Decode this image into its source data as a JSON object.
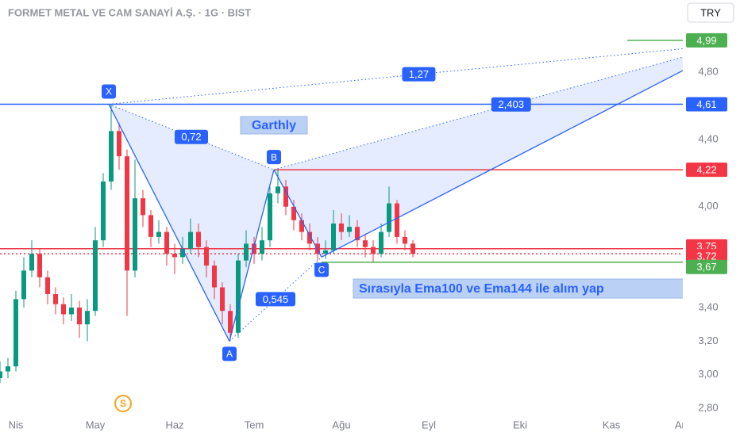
{
  "chart_data": {
    "type": "candlestick",
    "title": "FORMET METAL VE CAM SANAYİ A.Ş. · 1G · BIST",
    "currency": "TRY",
    "xlim": [
      -4,
      168
    ],
    "xticks": [
      {
        "value": 0,
        "label": "Nis"
      },
      {
        "value": 20,
        "label": "May"
      },
      {
        "value": 40,
        "label": "Haz"
      },
      {
        "value": 60,
        "label": "Tem"
      },
      {
        "value": 82,
        "label": "Ağu"
      },
      {
        "value": 104,
        "label": "Eyl"
      },
      {
        "value": 127,
        "label": "Eki"
      },
      {
        "value": 150,
        "label": "Kas"
      },
      {
        "value": 168,
        "label": "Ara"
      }
    ],
    "ylim": [
      2.73,
      5.23
    ],
    "yticks": [
      {
        "value": 4.8,
        "label": "4,80"
      },
      {
        "value": 4.4,
        "label": "4,40"
      },
      {
        "value": 4.0,
        "label": "4,00"
      },
      {
        "value": 3.4,
        "label": "3,40"
      },
      {
        "value": 3.2,
        "label": "3,20"
      },
      {
        "value": 3.0,
        "label": "3,00"
      },
      {
        "value": 2.8,
        "label": "2,80"
      }
    ],
    "up_color": "#089981",
    "down_color": "#f23645",
    "x": [
      -4,
      -2,
      0,
      2,
      4,
      6,
      8,
      10,
      12,
      14,
      16,
      18,
      20,
      22,
      24,
      26,
      28,
      30,
      32,
      34,
      36,
      38,
      40,
      42,
      44,
      46,
      48,
      50,
      52,
      54,
      56,
      58,
      60,
      62,
      64,
      66,
      68,
      70,
      72,
      74,
      76,
      78,
      80,
      82,
      84,
      86,
      88,
      90,
      92,
      94,
      96,
      98,
      100
    ],
    "open": [
      2.98,
      3.02,
      3.05,
      3.45,
      3.62,
      3.72,
      3.58,
      3.48,
      3.42,
      3.36,
      3.4,
      3.3,
      3.38,
      3.8,
      4.15,
      4.45,
      4.3,
      3.62,
      4.05,
      3.95,
      3.82,
      3.85,
      3.72,
      3.7,
      3.75,
      3.85,
      3.76,
      3.65,
      3.52,
      3.38,
      3.25,
      3.68,
      3.78,
      3.72,
      3.8,
      4.08,
      4.12,
      4.0,
      3.92,
      3.85,
      3.78,
      3.72,
      3.74,
      3.9,
      3.85,
      3.88,
      3.8,
      3.76,
      3.72,
      3.85,
      4.02,
      3.82,
      3.78
    ],
    "high": [
      3.08,
      3.1,
      3.5,
      3.7,
      3.8,
      3.75,
      3.62,
      3.52,
      3.46,
      3.48,
      3.44,
      3.45,
      3.88,
      4.2,
      4.61,
      4.5,
      4.34,
      4.28,
      4.1,
      3.98,
      3.92,
      3.88,
      3.78,
      3.82,
      3.93,
      3.9,
      3.8,
      3.68,
      3.55,
      3.42,
      3.72,
      3.86,
      3.82,
      3.88,
      4.12,
      4.22,
      4.16,
      4.04,
      3.96,
      3.9,
      3.82,
      3.8,
      3.98,
      3.96,
      3.95,
      3.92,
      3.84,
      3.8,
      3.9,
      4.12,
      4.04,
      3.86,
      3.8
    ],
    "low": [
      2.95,
      2.98,
      3.02,
      3.4,
      3.58,
      3.52,
      3.42,
      3.36,
      3.3,
      3.32,
      3.22,
      3.2,
      3.35,
      3.76,
      4.1,
      4.22,
      3.35,
      3.58,
      3.88,
      3.76,
      3.78,
      3.65,
      3.6,
      3.66,
      3.72,
      3.7,
      3.58,
      3.45,
      3.3,
      3.2,
      3.22,
      3.64,
      3.66,
      3.68,
      3.76,
      4.02,
      3.95,
      3.86,
      3.8,
      3.74,
      3.68,
      3.69,
      3.72,
      3.8,
      3.82,
      3.76,
      3.7,
      3.67,
      3.7,
      3.82,
      3.78,
      3.74,
      3.7
    ],
    "close": [
      3.02,
      3.05,
      3.45,
      3.62,
      3.72,
      3.58,
      3.48,
      3.42,
      3.36,
      3.4,
      3.3,
      3.38,
      3.8,
      4.15,
      4.45,
      4.3,
      3.62,
      4.05,
      3.95,
      3.82,
      3.85,
      3.72,
      3.7,
      3.75,
      3.85,
      3.76,
      3.65,
      3.52,
      3.38,
      3.25,
      3.68,
      3.78,
      3.72,
      3.8,
      4.08,
      4.12,
      4.0,
      3.92,
      3.85,
      3.78,
      3.72,
      3.74,
      3.9,
      3.85,
      3.88,
      3.8,
      3.76,
      3.72,
      3.85,
      4.02,
      3.82,
      3.78,
      3.72
    ],
    "price_lines": [
      {
        "value": 4.99,
        "label": "4,99",
        "color": "#4caf50",
        "from": 154
      },
      {
        "value": 4.61,
        "label": "4,61",
        "color": "#2962ff",
        "from": -4
      },
      {
        "value": 4.22,
        "label": "4,22",
        "color": "#f23645",
        "from": 65
      },
      {
        "value": 3.75,
        "label": "3,75",
        "color": "#f23645",
        "from": -4
      },
      {
        "value": 3.72,
        "label": "3,72",
        "color": "#f23645",
        "from": -4,
        "dotted": true
      },
      {
        "value": 3.67,
        "label": "3,67",
        "color": "#4caf50",
        "from": 77
      }
    ],
    "pattern": {
      "name": "Garthly",
      "color": "#2962ff",
      "points": [
        {
          "label": "X",
          "x": 23.4,
          "y": 4.61
        },
        {
          "label": "A",
          "x": 53.8,
          "y": 3.2
        },
        {
          "label": "B",
          "x": 65,
          "y": 4.22
        },
        {
          "label": "C",
          "x": 77,
          "y": 3.7
        }
      ],
      "projection_x": 168,
      "projection_x_line": 4.94,
      "projection_b_line": 4.89,
      "projection_c_line": 4.81,
      "ratios": [
        {
          "value": 0.72,
          "label": "0,72"
        },
        {
          "value": 0.545,
          "label": "0,545"
        },
        {
          "value": 1.27,
          "label": "1,27"
        },
        {
          "value": 2.403,
          "label": "2,403"
        }
      ]
    },
    "note": "Sırasıyla Ema100 ve Ema144 ile alım yap",
    "event_marker": {
      "label": "S",
      "x": 27
    }
  }
}
